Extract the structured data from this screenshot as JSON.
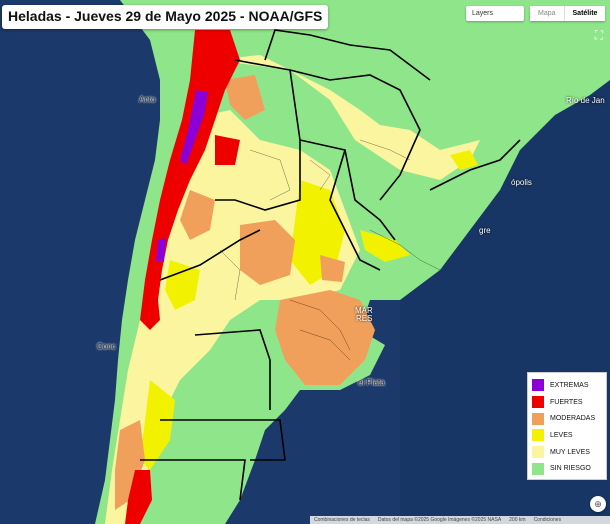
{
  "title": "Heladas - Jueves 29 de Mayo 2025 - NOAA/GFS",
  "controls": {
    "layers_label": "Layers",
    "map_type_options": [
      "Mapa",
      "Satélite"
    ],
    "map_type_selected": "Satélite"
  },
  "legend": {
    "items": [
      {
        "label": "EXTREMAS",
        "color": "#8b00d6"
      },
      {
        "label": "FUERTES",
        "color": "#ee0000"
      },
      {
        "label": "MODERADAS",
        "color": "#f0a05a"
      },
      {
        "label": "LEVES",
        "color": "#f2f200"
      },
      {
        "label": "MUY LEVES",
        "color": "#fbf5a0"
      },
      {
        "label": "SIN RIESGO",
        "color": "#8fe68a"
      }
    ]
  },
  "places": [
    {
      "name": "Anto",
      "style": "dark"
    },
    {
      "name": "Conc",
      "style": "dark"
    },
    {
      "name": "Río de Jan",
      "style": "light"
    },
    {
      "name": "ópolis",
      "style": "light"
    },
    {
      "name": "gre",
      "style": "light"
    },
    {
      "name": "el Plata",
      "style": "dark"
    },
    {
      "name": "MAR",
      "style": "light"
    },
    {
      "name": "RES",
      "style": "light"
    }
  ],
  "footer": {
    "shortcuts": "Combinaciones de teclas",
    "attribution": "Datos del mapa ©2025 Google Imágenes ©2025 NASA",
    "scale": "200 km",
    "terms": "Condiciones"
  },
  "colors": {
    "ocean": "#1b3a6b",
    "land_safe": "#8fe68a",
    "very_light": "#fbf5a0",
    "light": "#f2f200",
    "moderate": "#f0a05a",
    "strong": "#ee0000",
    "extreme": "#8b00d6",
    "borders": "#000000"
  }
}
